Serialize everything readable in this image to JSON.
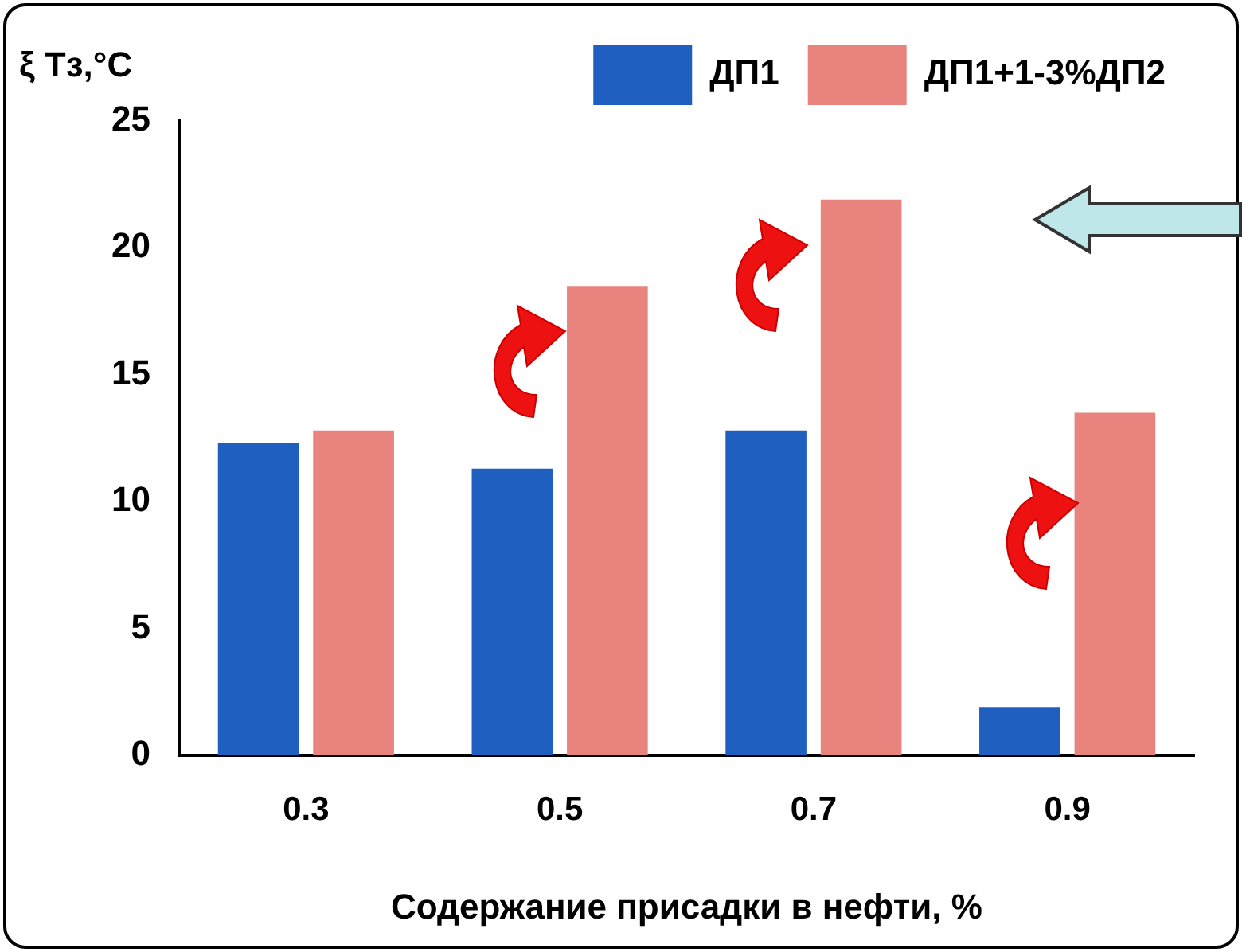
{
  "chart_data": {
    "type": "bar",
    "ylabel": "ξ Тз,°C",
    "xlabel": "Содержание присадки в нефти, %",
    "categories": [
      "0.3",
      "0.5",
      "0.7",
      "0.9"
    ],
    "series": [
      {
        "name": "ДП1",
        "color": "#1f5fbf",
        "values": [
          12.3,
          11.3,
          12.8,
          1.9
        ]
      },
      {
        "name": "ДП1+1-3%ДП2",
        "color": "#e8837d",
        "values": [
          12.8,
          18.5,
          21.9,
          13.5
        ]
      }
    ],
    "ylim": [
      0,
      25
    ],
    "yticks": [
      0,
      5,
      10,
      15,
      20,
      25
    ],
    "grid": false,
    "legend": "top"
  }
}
